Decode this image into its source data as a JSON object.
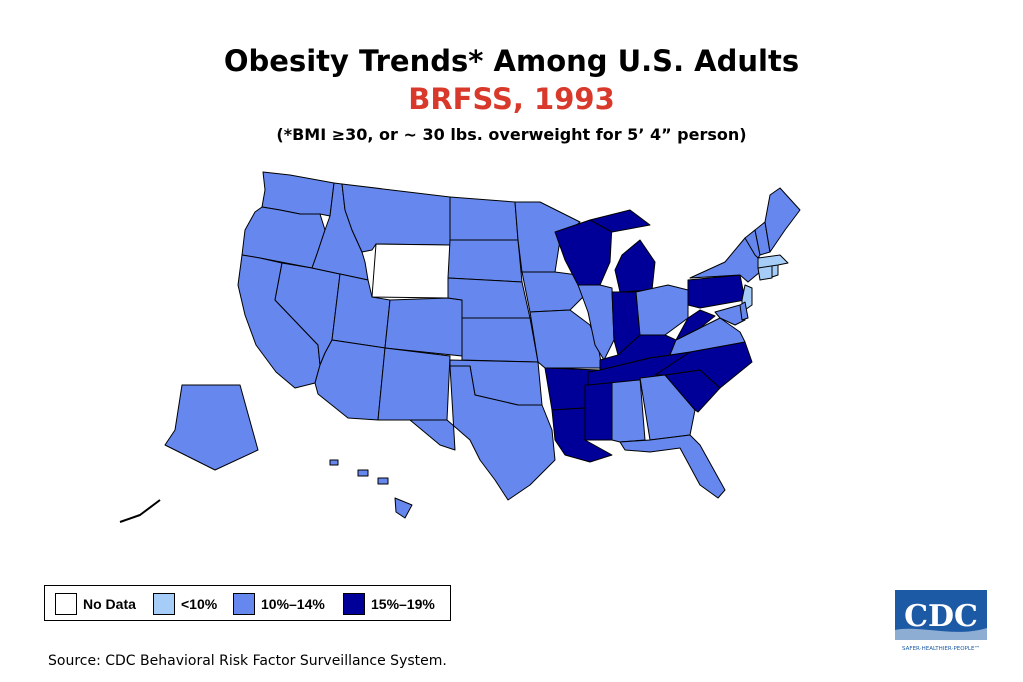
{
  "header": {
    "title": "Obesity Trends* Among U.S. Adults",
    "subtitle": "BRFSS, 1993",
    "note": "(*BMI ≥30, or ~ 30 lbs. overweight for 5’ 4” person)"
  },
  "colors": {
    "no_data": "#ffffff",
    "lt10": "#a6cdf8",
    "p10_14": "#6688ee",
    "p15_19": "#000099",
    "title_red": "#d9392b"
  },
  "legend": {
    "items": [
      {
        "label": "No Data",
        "color": "#ffffff"
      },
      {
        "label": "<10%",
        "color": "#a6cdf8"
      },
      {
        "label": "10%–14%",
        "color": "#6688ee"
      },
      {
        "label": "15%–19%",
        "color": "#000099"
      }
    ]
  },
  "map_data": {
    "category_by_state": {
      "WY": "No Data",
      "MA": "<10%",
      "NJ": "<10%",
      "CT": "<10%",
      "RI": "<10%",
      "WI": "15%–19%",
      "MI": "15%–19%",
      "IN": "15%–19%",
      "KY": "15%–19%",
      "WV": "15%–19%",
      "PA": "15%–19%",
      "TN": "15%–19%",
      "NC": "15%–19%",
      "SC": "15%–19%",
      "MS": "15%–19%",
      "LA": "15%–19%",
      "AR": "15%–19%",
      "default": "10%–14%"
    }
  },
  "footer": {
    "source": "Source: CDC Behavioral Risk Factor Surveillance System."
  },
  "logo": {
    "text": "CDC",
    "tagline": "SAFER·HEALTHIER·PEOPLE™"
  }
}
